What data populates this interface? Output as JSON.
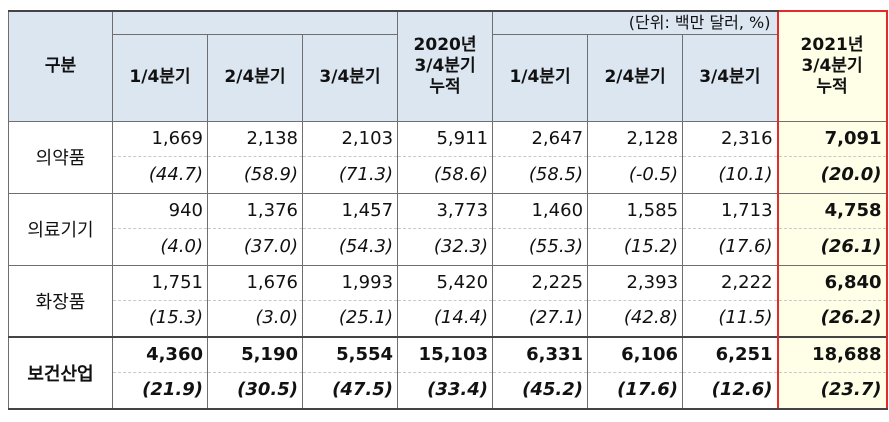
{
  "table": {
    "unit_note": "(단위: 백만 달러, %)",
    "corner_header": "구분",
    "col_headers": [
      "1/4분기",
      "2/4분기",
      "3/4분기",
      "2020년\n3/4분기\n누적",
      "1/4분기",
      "2/4분기",
      "3/4분기"
    ],
    "last_col_header": "2021년\n3/4분기\n누적",
    "rows": [
      {
        "label": "의약품",
        "values": [
          "1,669",
          "2,138",
          "2,103",
          "5,911",
          "2,647",
          "2,128",
          "2,316",
          "7,091"
        ],
        "percents": [
          "(44.7)",
          "(58.9)",
          "(71.3)",
          "(58.6)",
          "(58.5)",
          "(-0.5)",
          "(10.1)",
          "(20.0)"
        ]
      },
      {
        "label": "의료기기",
        "values": [
          "940",
          "1,376",
          "1,457",
          "3,773",
          "1,460",
          "1,585",
          "1,713",
          "4,758"
        ],
        "percents": [
          "(4.0)",
          "(37.0)",
          "(54.3)",
          "(32.3)",
          "(55.3)",
          "(15.2)",
          "(17.6)",
          "(26.1)"
        ]
      },
      {
        "label": "화장품",
        "values": [
          "1,751",
          "1,676",
          "1,993",
          "5,420",
          "2,225",
          "2,393",
          "2,222",
          "6,840"
        ],
        "percents": [
          "(15.3)",
          "(3.0)",
          "(25.1)",
          "(14.4)",
          "(27.1)",
          "(42.8)",
          "(11.5)",
          "(26.2)"
        ]
      },
      {
        "label": "보건산업",
        "values": [
          "4,360",
          "5,190",
          "5,554",
          "15,103",
          "6,331",
          "6,106",
          "6,251",
          "18,688"
        ],
        "percents": [
          "(21.9)",
          "(30.5)",
          "(47.5)",
          "(33.4)",
          "(45.2)",
          "(17.6)",
          "(12.6)",
          "(23.7)"
        ]
      }
    ],
    "highlight_border_color": "#e32b2b",
    "header_bg_color": "#dce6f1",
    "highlight_bg_color": "#fffee6"
  }
}
